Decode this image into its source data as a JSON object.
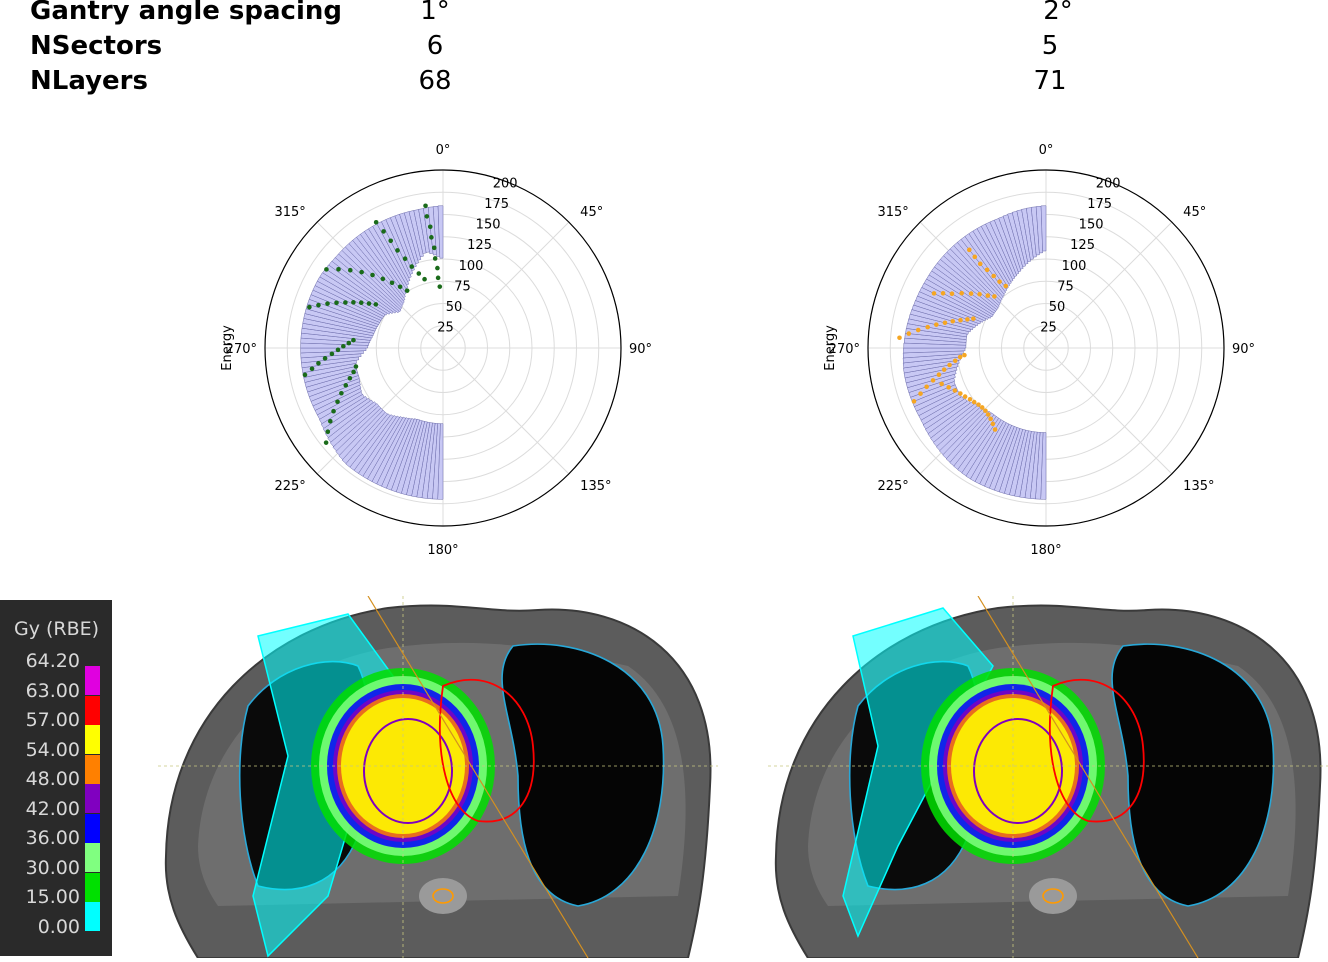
{
  "table": {
    "rows": [
      {
        "label": "Gantry angle spacing",
        "v1": "1°",
        "v2": "2°"
      },
      {
        "label": "NSectors",
        "v1": "6",
        "v2": "5"
      },
      {
        "label": "NLayers",
        "v1": "68",
        "v2": "71"
      }
    ]
  },
  "chart_data": [
    {
      "type": "polar-bar",
      "ylabel": "Energy",
      "angle_ticks": [
        "0°",
        "45°",
        "90°",
        "135°",
        "180°",
        "225°",
        "270°",
        "315°"
      ],
      "radial_ticks": [
        "25",
        "50",
        "75",
        "100",
        "125",
        "150",
        "175",
        "200"
      ],
      "rlim": [
        0,
        200
      ],
      "bar_color": "#c8c8f4",
      "bar_edge_color": "#6a6aaa",
      "point_color": "#1a6b1a",
      "range_angles_deg": [
        180,
        190,
        200,
        210,
        220,
        230,
        240,
        250,
        260,
        270,
        280,
        290,
        300,
        310,
        320,
        330,
        340,
        350,
        360
      ],
      "range_min": [
        85,
        85,
        85,
        90,
        97,
        97,
        105,
        100,
        100,
        85,
        80,
        77,
        75,
        63,
        68,
        80,
        95,
        110,
        100
      ],
      "range_max": [
        170,
        170,
        170,
        170,
        170,
        165,
        160,
        160,
        160,
        160,
        160,
        160,
        160,
        158,
        158,
        158,
        158,
        158,
        160
      ],
      "points": [
        {
          "a": 231,
          "e": 169
        },
        {
          "a": 234,
          "e": 160
        },
        {
          "a": 237,
          "e": 151
        },
        {
          "a": 240,
          "e": 142
        },
        {
          "a": 243,
          "e": 133
        },
        {
          "a": 246,
          "e": 125
        },
        {
          "a": 249,
          "e": 117
        },
        {
          "a": 252,
          "e": 110
        },
        {
          "a": 255,
          "e": 104
        },
        {
          "a": 258,
          "e": 100
        },
        {
          "a": 259,
          "e": 158
        },
        {
          "a": 261,
          "e": 149
        },
        {
          "a": 263,
          "e": 141
        },
        {
          "a": 265,
          "e": 133
        },
        {
          "a": 267,
          "e": 125
        },
        {
          "a": 269,
          "e": 118
        },
        {
          "a": 271,
          "e": 112
        },
        {
          "a": 273,
          "e": 106
        },
        {
          "a": 275,
          "e": 101
        },
        {
          "a": 287,
          "e": 157
        },
        {
          "a": 289,
          "e": 148
        },
        {
          "a": 291,
          "e": 139
        },
        {
          "a": 293,
          "e": 130
        },
        {
          "a": 295,
          "e": 121
        },
        {
          "a": 297,
          "e": 113
        },
        {
          "a": 299,
          "e": 105
        },
        {
          "a": 301,
          "e": 97
        },
        {
          "a": 303,
          "e": 90
        },
        {
          "a": 304,
          "e": 158
        },
        {
          "a": 307,
          "e": 147
        },
        {
          "a": 310,
          "e": 136
        },
        {
          "a": 313,
          "e": 125
        },
        {
          "a": 316,
          "e": 114
        },
        {
          "a": 319,
          "e": 103
        },
        {
          "a": 322,
          "e": 93
        },
        {
          "a": 325,
          "e": 84
        },
        {
          "a": 328,
          "e": 76
        },
        {
          "a": 332,
          "e": 160
        },
        {
          "a": 333,
          "e": 147
        },
        {
          "a": 334,
          "e": 134
        },
        {
          "a": 335,
          "e": 121
        },
        {
          "a": 337,
          "e": 109
        },
        {
          "a": 339,
          "e": 98
        },
        {
          "a": 342,
          "e": 88
        },
        {
          "a": 345,
          "e": 80
        },
        {
          "a": 353,
          "e": 161
        },
        {
          "a": 353,
          "e": 149
        },
        {
          "a": 354,
          "e": 137
        },
        {
          "a": 354,
          "e": 125
        },
        {
          "a": 355,
          "e": 113
        },
        {
          "a": 355,
          "e": 101
        },
        {
          "a": 356,
          "e": 90
        },
        {
          "a": 356,
          "e": 79
        },
        {
          "a": 357,
          "e": 69
        }
      ]
    },
    {
      "type": "polar-bar",
      "ylabel": "Energy",
      "angle_ticks": [
        "0°",
        "45°",
        "90°",
        "135°",
        "180°",
        "225°",
        "270°",
        "315°"
      ],
      "radial_ticks": [
        "25",
        "50",
        "75",
        "100",
        "125",
        "150",
        "175",
        "200"
      ],
      "rlim": [
        0,
        200
      ],
      "bar_color": "#c8c8f4",
      "bar_edge_color": "#6a6aaa",
      "point_color": "#f5a623",
      "range_angles_deg": [
        180,
        190,
        200,
        210,
        220,
        230,
        240,
        250,
        260,
        270,
        280,
        290,
        300,
        310,
        320,
        330,
        340,
        350,
        360
      ],
      "range_min": [
        95,
        95,
        95,
        95,
        95,
        100,
        110,
        110,
        100,
        90,
        90,
        80,
        70,
        70,
        75,
        82,
        90,
        100,
        110
      ],
      "range_max": [
        170,
        170,
        170,
        170,
        168,
        165,
        162,
        162,
        162,
        160,
        158,
        156,
        155,
        155,
        155,
        155,
        155,
        158,
        160
      ],
      "points": [
        {
          "a": 212,
          "e": 108
        },
        {
          "a": 215,
          "e": 104
        },
        {
          "a": 218,
          "e": 101
        },
        {
          "a": 221,
          "e": 99
        },
        {
          "a": 224,
          "e": 98
        },
        {
          "a": 227,
          "e": 98
        },
        {
          "a": 230,
          "e": 99
        },
        {
          "a": 233,
          "e": 101
        },
        {
          "a": 236,
          "e": 103
        },
        {
          "a": 239,
          "e": 106
        },
        {
          "a": 242,
          "e": 109
        },
        {
          "a": 245,
          "e": 113
        },
        {
          "a": 248,
          "e": 118
        },
        {
          "a": 251,
          "e": 124
        },
        {
          "a": 248,
          "e": 160
        },
        {
          "a": 250,
          "e": 150
        },
        {
          "a": 252,
          "e": 141
        },
        {
          "a": 254,
          "e": 132
        },
        {
          "a": 256,
          "e": 124
        },
        {
          "a": 258,
          "e": 117
        },
        {
          "a": 260,
          "e": 110
        },
        {
          "a": 262,
          "e": 103
        },
        {
          "a": 264,
          "e": 97
        },
        {
          "a": 265,
          "e": 92
        },
        {
          "a": 274,
          "e": 165
        },
        {
          "a": 276,
          "e": 155
        },
        {
          "a": 278,
          "e": 145
        },
        {
          "a": 280,
          "e": 135
        },
        {
          "a": 282,
          "e": 126
        },
        {
          "a": 284,
          "e": 117
        },
        {
          "a": 286,
          "e": 109
        },
        {
          "a": 288,
          "e": 101
        },
        {
          "a": 290,
          "e": 94
        },
        {
          "a": 292,
          "e": 88
        },
        {
          "a": 296,
          "e": 140
        },
        {
          "a": 298,
          "e": 131
        },
        {
          "a": 300,
          "e": 122
        },
        {
          "a": 303,
          "e": 113
        },
        {
          "a": 306,
          "e": 104
        },
        {
          "a": 309,
          "e": 96
        },
        {
          "a": 312,
          "e": 88
        },
        {
          "a": 315,
          "e": 82
        },
        {
          "a": 322,
          "e": 140
        },
        {
          "a": 322,
          "e": 130
        },
        {
          "a": 322,
          "e": 120
        },
        {
          "a": 323,
          "e": 110
        },
        {
          "a": 324,
          "e": 100
        },
        {
          "a": 325,
          "e": 91
        },
        {
          "a": 327,
          "e": 83
        }
      ]
    }
  ],
  "legend": {
    "title": "Gy (RBE)",
    "levels": [
      {
        "label": "64.20",
        "color": "#e000e0"
      },
      {
        "label": "63.00",
        "color": "#ff0000"
      },
      {
        "label": "57.00",
        "color": "#ffff00"
      },
      {
        "label": "54.00",
        "color": "#ff8000"
      },
      {
        "label": "48.00",
        "color": "#8000c0"
      },
      {
        "label": "42.00",
        "color": "#0000ff"
      },
      {
        "label": "36.00",
        "color": "#80ff80"
      },
      {
        "label": "30.00",
        "color": "#00e000"
      },
      {
        "label": "15.00",
        "color": "#00ffff"
      },
      {
        "label": "0.00",
        "color": "#2a2a2a"
      }
    ]
  }
}
